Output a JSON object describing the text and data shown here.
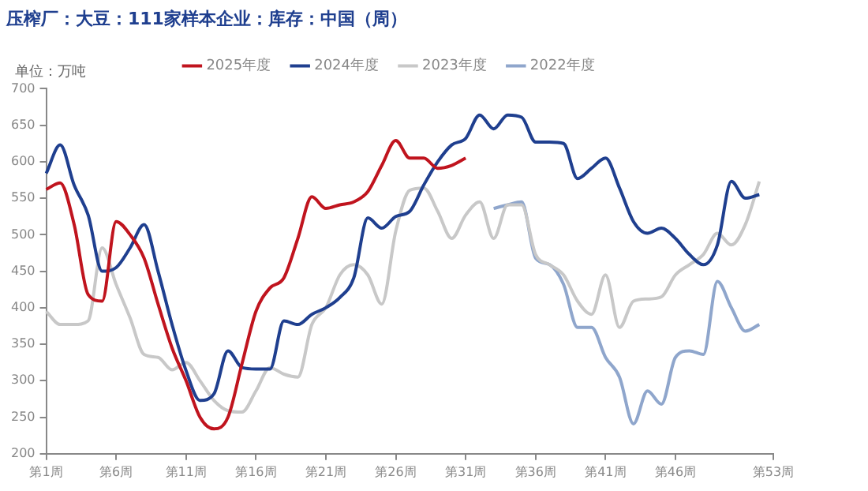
{
  "chart_data": {
    "type": "line",
    "title": "压榨厂：大豆：111家样本企业：库存：中国（周）",
    "ylabel": "单位：万吨",
    "categories": [
      "第1周",
      null,
      null,
      null,
      null,
      "第6周",
      null,
      null,
      null,
      null,
      "第11周",
      null,
      null,
      null,
      null,
      "第16周",
      null,
      null,
      null,
      null,
      "第21周",
      null,
      null,
      null,
      null,
      "第26周",
      null,
      null,
      null,
      null,
      "第31周",
      null,
      null,
      null,
      null,
      "第36周",
      null,
      null,
      null,
      null,
      "第41周",
      null,
      null,
      null,
      null,
      "第46周",
      null,
      null,
      null,
      null,
      null,
      null,
      "第53周"
    ],
    "series": [
      {
        "name": "2025年度",
        "color": "#c0141e",
        "values": [
          562,
          571,
          514,
          418,
          409,
          518,
          500,
          468,
          405,
          345,
          300,
          250,
          234,
          250,
          323,
          395,
          427,
          441,
          495,
          552,
          536,
          541,
          545,
          559,
          595,
          629,
          605,
          605,
          591,
          595,
          605,
          null,
          null,
          null,
          null,
          null,
          null,
          null,
          null,
          null,
          null,
          null,
          null,
          null,
          null,
          null,
          null,
          null,
          null,
          null,
          null,
          null,
          null
        ]
      },
      {
        "name": "2024年度",
        "color": "#1f3f8f",
        "values": [
          584,
          623,
          568,
          527,
          450,
          455,
          482,
          514,
          450,
          377,
          314,
          273,
          282,
          341,
          318,
          316,
          316,
          382,
          377,
          391,
          400,
          414,
          441,
          523,
          509,
          525,
          532,
          568,
          600,
          623,
          632,
          664,
          645,
          664,
          661,
          627,
          627,
          625,
          577,
          591,
          605,
          564,
          518,
          502,
          509,
          495,
          473,
          459,
          486,
          573,
          550,
          555,
          null
        ]
      },
      {
        "name": "2023年度",
        "color": "#c8c8c8",
        "values": [
          395,
          377,
          377,
          382,
          482,
          432,
          386,
          336,
          332,
          315,
          325,
          300,
          273,
          259,
          257,
          286,
          318,
          309,
          305,
          377,
          400,
          445,
          459,
          445,
          405,
          505,
          561,
          564,
          532,
          495,
          527,
          545,
          495,
          541,
          541,
          473,
          459,
          445,
          409,
          391,
          445,
          373,
          409,
          412,
          415,
          445,
          459,
          473,
          502,
          486,
          514,
          573,
          null
        ]
      },
      {
        "name": "2022年度",
        "color": "#8fa6cc",
        "values": [
          null,
          null,
          null,
          null,
          null,
          null,
          null,
          null,
          null,
          null,
          null,
          null,
          null,
          null,
          null,
          null,
          null,
          null,
          null,
          null,
          null,
          null,
          null,
          null,
          null,
          null,
          null,
          null,
          null,
          null,
          null,
          null,
          536,
          541,
          545,
          468,
          459,
          432,
          373,
          373,
          332,
          305,
          241,
          286,
          268,
          332,
          341,
          336,
          436,
          400,
          368,
          377,
          null
        ]
      }
    ],
    "ylim": [
      200,
      700
    ],
    "yticks": [
      200,
      250,
      300,
      350,
      400,
      450,
      500,
      550,
      600,
      650,
      700
    ],
    "grid": false,
    "legend": "top",
    "marker": "none",
    "line_style": "solid"
  }
}
